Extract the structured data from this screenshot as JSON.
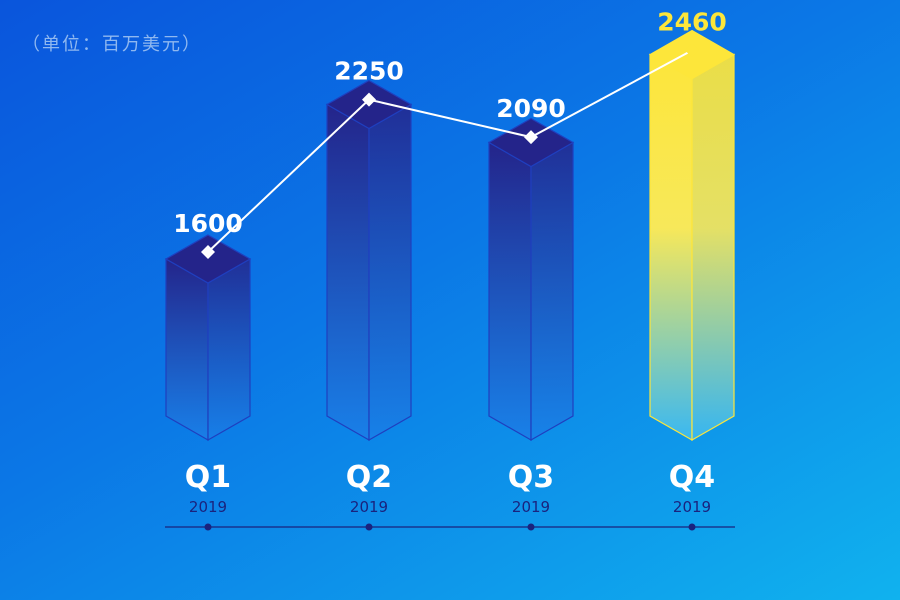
{
  "unit_label": "（单位：百万美元）",
  "colors": {
    "bar_top": "#24248a",
    "bar_bottom": "#1a7fe8",
    "bar_edge": "#1f3fbf",
    "highlight_top": "#fde63a",
    "highlight_bottom": "#39b8f2",
    "highlight_edge": "#fde63a",
    "line": "#ffffff",
    "highlight_text": "#fde63a",
    "axis": "#1a237e"
  },
  "chart_data": {
    "type": "bar",
    "title": "",
    "unit": "（单位：百万美元）",
    "categories": [
      "Q1",
      "Q2",
      "Q3",
      "Q4"
    ],
    "category_sublabels": [
      "2019",
      "2019",
      "2019",
      "2019"
    ],
    "values": [
      1600,
      2250,
      2090,
      2460
    ],
    "data_labels": [
      "1600",
      "2250",
      "2090",
      "2460"
    ],
    "highlight_index": 3,
    "overlay": "line",
    "grid": false,
    "legend": "none"
  }
}
